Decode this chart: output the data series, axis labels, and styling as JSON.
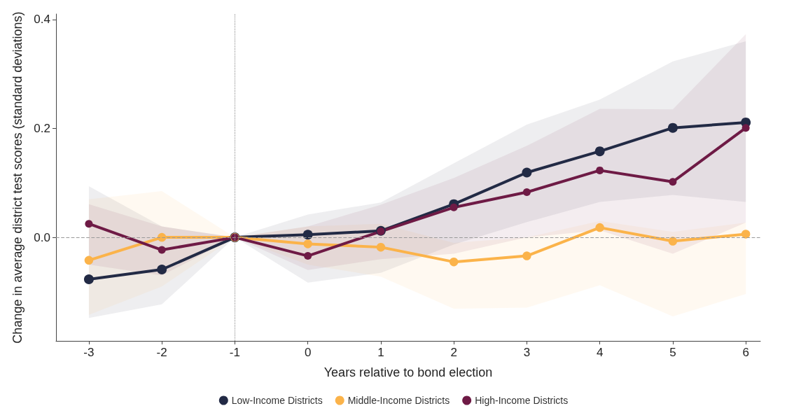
{
  "chart_data": {
    "type": "line",
    "xlabel": "Years relative to bond election",
    "ylabel": "Change in average district test scores (standard deviations)",
    "x": [
      -3,
      -2,
      -1,
      0,
      1,
      2,
      3,
      4,
      5,
      6
    ],
    "series": [
      {
        "name": "Low-Income Districts",
        "color": "#222a45",
        "values": [
          -0.077,
          -0.059,
          0,
          0.005,
          0.012,
          0.061,
          0.119,
          0.158,
          0.201,
          0.211
        ],
        "lower": [
          -0.148,
          -0.123,
          0,
          -0.083,
          -0.065,
          -0.013,
          0.028,
          0.065,
          0.078,
          0.065
        ],
        "upper": [
          0.094,
          0.02,
          0,
          0.042,
          0.064,
          0.136,
          0.207,
          0.253,
          0.323,
          0.36
        ]
      },
      {
        "name": "Middle-Income Districts",
        "color": "#fbb34a",
        "values": [
          -0.042,
          0,
          0,
          -0.012,
          -0.018,
          -0.045,
          -0.034,
          0.018,
          -0.007,
          0.006
        ],
        "lower": [
          -0.142,
          -0.09,
          0,
          -0.05,
          -0.072,
          -0.131,
          -0.129,
          -0.088,
          -0.145,
          -0.104
        ],
        "upper": [
          0.07,
          0.085,
          0,
          0.02,
          0.025,
          -0.01,
          0,
          0.03,
          0.01,
          0.027
        ]
      },
      {
        "name": "High-Income Districts",
        "color": "#6e1a45",
        "values": [
          0.025,
          -0.023,
          0,
          -0.034,
          0.011,
          0.055,
          0.083,
          0.123,
          0.102,
          0.201
        ],
        "lower": [
          -0.05,
          -0.07,
          0,
          -0.06,
          -0.04,
          -0.03,
          0,
          0.013,
          -0.03,
          0.027
        ],
        "upper": [
          0.061,
          0.02,
          0,
          0.02,
          0.06,
          0.109,
          0.168,
          0.236,
          0.235,
          0.373
        ]
      }
    ],
    "xlim": [
      -3.45,
      6.2
    ],
    "ylim": [
      -0.19,
      0.41
    ],
    "xticks": [
      -3,
      -2,
      -1,
      0,
      1,
      2,
      3,
      4,
      5,
      6
    ],
    "yticks": [
      {
        "value": 0,
        "label": "0.0"
      },
      {
        "value": 0.2,
        "label": "0.2"
      },
      {
        "value": 0.4,
        "label": "0.4"
      }
    ],
    "ref_lines": [
      {
        "axis": "y",
        "value": 0,
        "label": null,
        "color": "#999999",
        "line_style": "dashed"
      },
      {
        "axis": "x",
        "value": -1,
        "label": null,
        "color": "#999999",
        "line_style": "dotted"
      }
    ],
    "grid": false,
    "legend": "bottom",
    "marker": "circle",
    "line_style": "solid"
  }
}
